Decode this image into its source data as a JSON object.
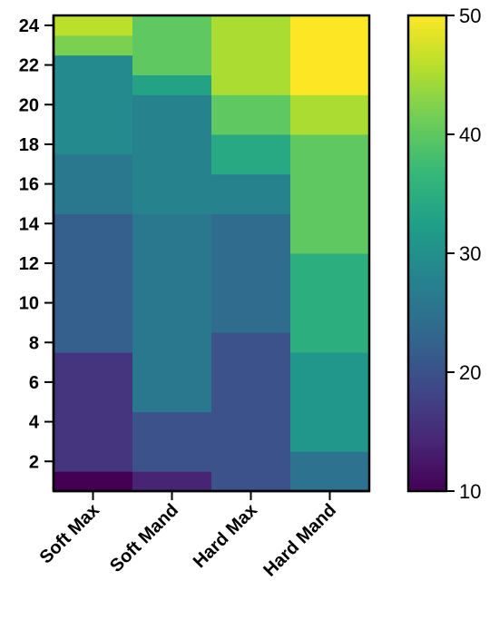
{
  "chart_data": {
    "type": "heatmap",
    "title": "",
    "xlabel": "",
    "ylabel": "",
    "categories": [
      "Soft Max",
      "Soft Mand",
      "Hard Max",
      "Hard Mand"
    ],
    "y_ticks": [
      "2",
      "4",
      "6",
      "8",
      "10",
      "12",
      "14",
      "16",
      "18",
      "20",
      "22",
      "24"
    ],
    "ylim": [
      0.5,
      24.5
    ],
    "colorbar": {
      "colormap": "viridis",
      "range": [
        10,
        50
      ],
      "ticks": [
        "10",
        "20",
        "30",
        "40",
        "50"
      ]
    },
    "series": [
      {
        "name": "Soft Max",
        "blocks": [
          {
            "y": [
              1,
              1
            ],
            "value": 10
          },
          {
            "y": [
              2,
              7
            ],
            "value": 16
          },
          {
            "y": [
              8,
              14
            ],
            "value": 22
          },
          {
            "y": [
              15,
              17
            ],
            "value": 26
          },
          {
            "y": [
              18,
              22
            ],
            "value": 29
          },
          {
            "y": [
              23,
              23
            ],
            "value": 42
          },
          {
            "y": [
              24,
              24
            ],
            "value": 46
          }
        ]
      },
      {
        "name": "Soft Mand",
        "blocks": [
          {
            "y": [
              1,
              1
            ],
            "value": 14
          },
          {
            "y": [
              2,
              4
            ],
            "value": 20
          },
          {
            "y": [
              5,
              14
            ],
            "value": 26
          },
          {
            "y": [
              15,
              20
            ],
            "value": 28
          },
          {
            "y": [
              21,
              21
            ],
            "value": 33
          },
          {
            "y": [
              22,
              24
            ],
            "value": 40
          }
        ]
      },
      {
        "name": "Hard Max",
        "blocks": [
          {
            "y": [
              1,
              8
            ],
            "value": 20
          },
          {
            "y": [
              9,
              14
            ],
            "value": 24
          },
          {
            "y": [
              15,
              16
            ],
            "value": 28
          },
          {
            "y": [
              17,
              18
            ],
            "value": 34
          },
          {
            "y": [
              19,
              20
            ],
            "value": 40
          },
          {
            "y": [
              21,
              24
            ],
            "value": 45
          }
        ]
      },
      {
        "name": "Hard Mand",
        "blocks": [
          {
            "y": [
              1,
              2
            ],
            "value": 25
          },
          {
            "y": [
              3,
              7
            ],
            "value": 31
          },
          {
            "y": [
              8,
              12
            ],
            "value": 35
          },
          {
            "y": [
              13,
              18
            ],
            "value": 40
          },
          {
            "y": [
              19,
              20
            ],
            "value": 45
          },
          {
            "y": [
              21,
              24
            ],
            "value": 50
          }
        ]
      }
    ]
  }
}
